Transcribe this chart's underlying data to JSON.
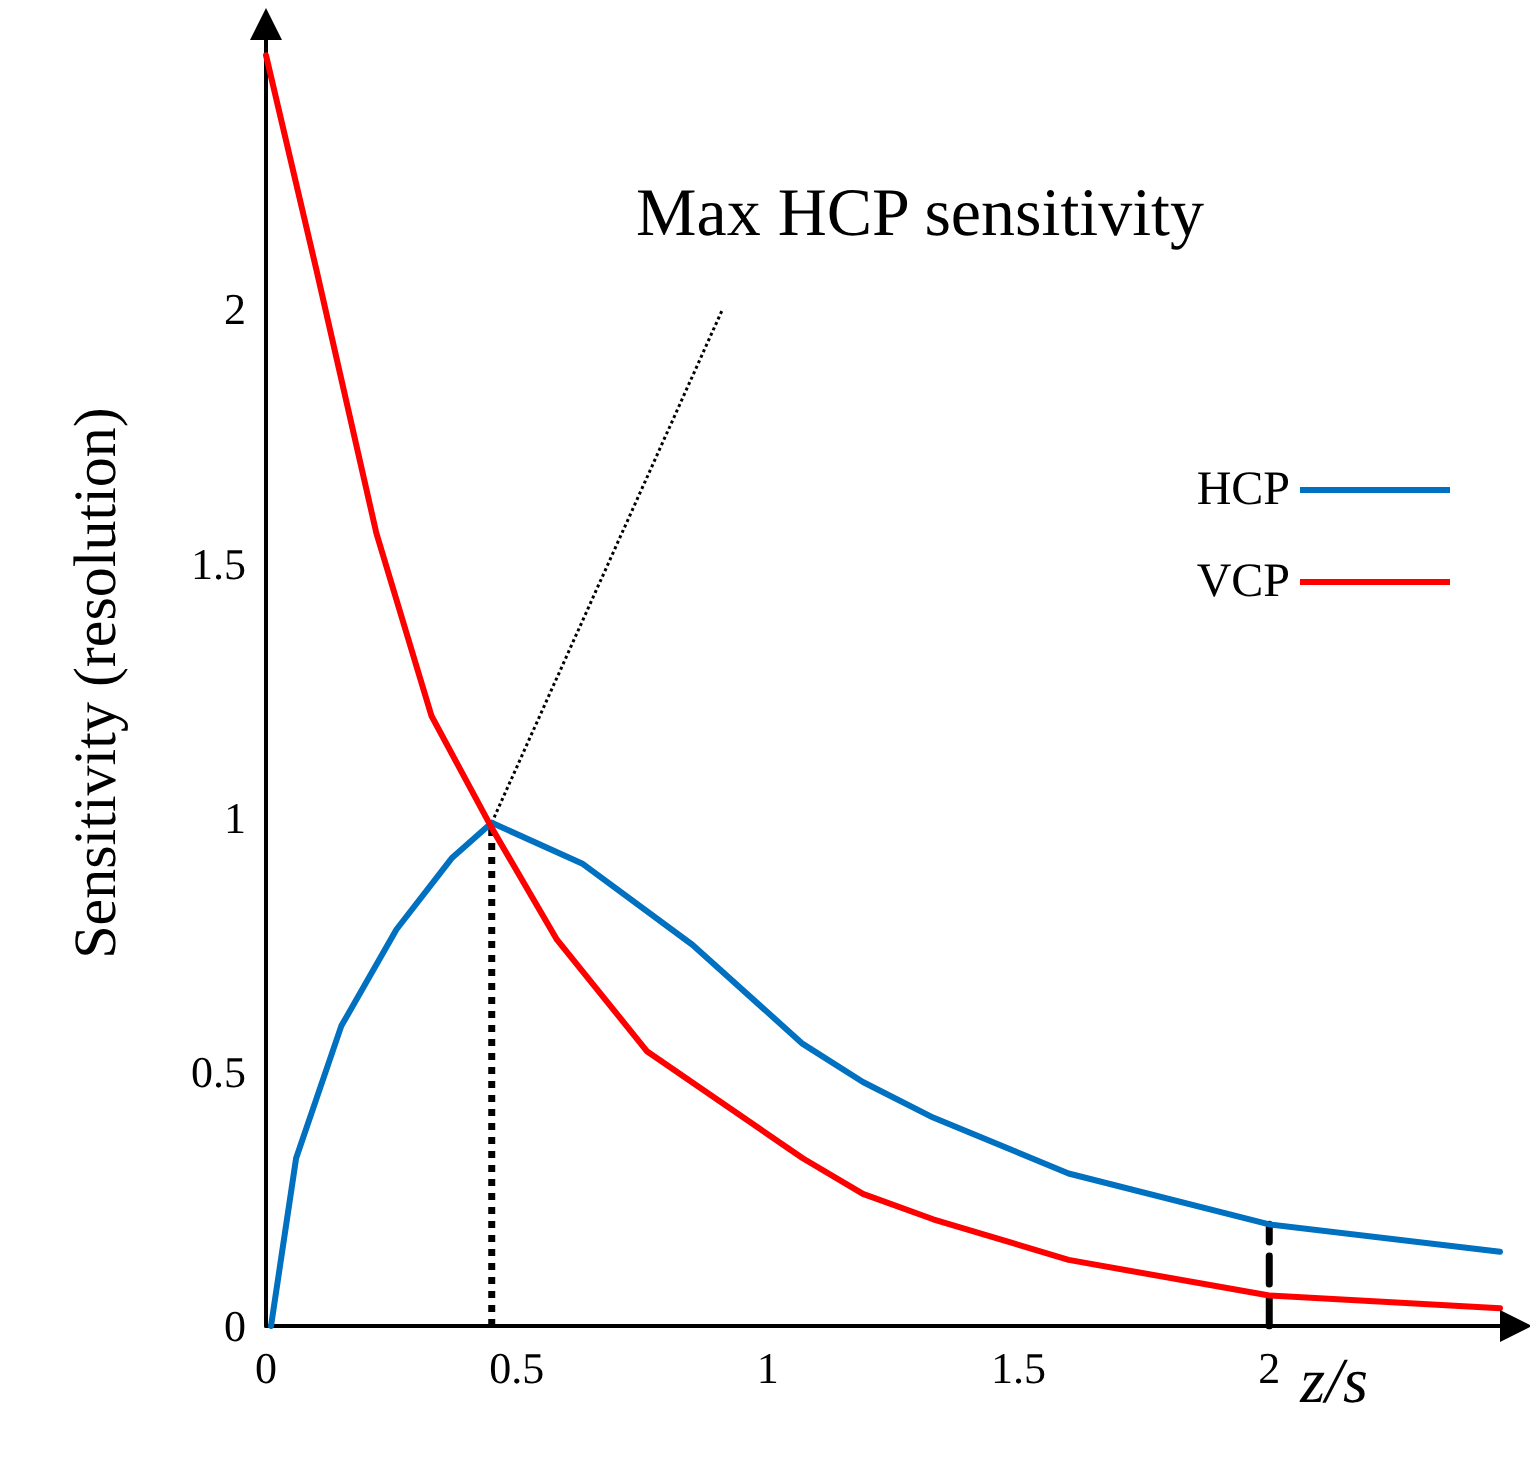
{
  "chart_data": {
    "type": "line",
    "xlabel": "z/s",
    "ylabel": "Sensitivity (resolution)",
    "xlim": [
      0,
      2.46
    ],
    "ylim": [
      0,
      2.53
    ],
    "xticks": [
      0,
      0.5,
      1,
      1.5,
      2
    ],
    "yticks": [
      0,
      0.5,
      1,
      1.5,
      2
    ],
    "grid": false,
    "legend": "top right",
    "marker": "none",
    "line_style": "solid",
    "series": [
      {
        "name": "HCP",
        "color": "#0070c0",
        "x": [
          0.01,
          0.06,
          0.15,
          0.26,
          0.37,
          0.45,
          0.63,
          0.85,
          1.07,
          1.19,
          1.33,
          1.6,
          2.0,
          2.46
        ],
        "values": [
          0,
          0.33,
          0.59,
          0.78,
          0.92,
          0.99,
          0.91,
          0.75,
          0.555,
          0.48,
          0.41,
          0.3,
          0.2,
          0.146
        ]
      },
      {
        "name": "VCP",
        "color": "#ff0000",
        "x": [
          0,
          0.1,
          0.22,
          0.33,
          0.45,
          0.58,
          0.76,
          1.07,
          1.19,
          1.33,
          1.6,
          2.0,
          2.46
        ],
        "values": [
          2.5,
          2.08,
          1.56,
          1.2,
          0.98,
          0.76,
          0.54,
          0.33,
          0.26,
          0.21,
          0.13,
          0.06,
          0.035
        ]
      },
      {
        "type": "line",
        "color": "#000000",
        "line_style": "dotted",
        "x": [
          0.45,
          0.45
        ],
        "values": [
          0,
          0.99
        ]
      },
      {
        "type": "line",
        "color": "#000000",
        "line_style": "dashed",
        "x": [
          2.0,
          2.0
        ],
        "values": [
          0,
          0.2
        ]
      },
      {
        "type": "line",
        "color": "#000000",
        "line_style": "dotted",
        "x": [
          0.45,
          0.91
        ],
        "values": [
          0.99,
          2.0
        ]
      }
    ],
    "annotations": [
      "Max HCP sensitivity"
    ]
  }
}
